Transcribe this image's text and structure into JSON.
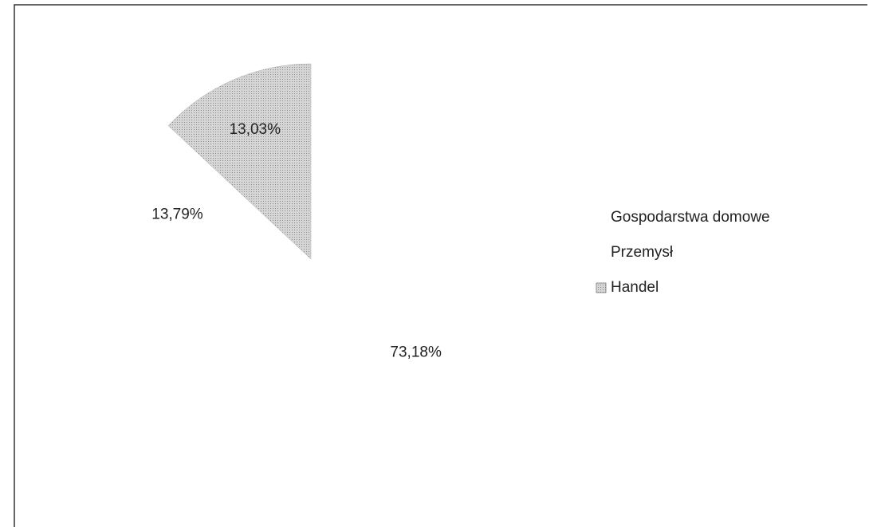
{
  "chart_data": {
    "type": "pie",
    "categories": [
      "Gospodarstwa domowe",
      "Przemysł",
      "Handel"
    ],
    "values": [
      73.18,
      13.79,
      13.03
    ],
    "value_labels": [
      "73,18%",
      "13,79%",
      "13,03%"
    ],
    "colors": [
      "#ffffff",
      "#ffffff",
      "#c4c4c4"
    ]
  }
}
